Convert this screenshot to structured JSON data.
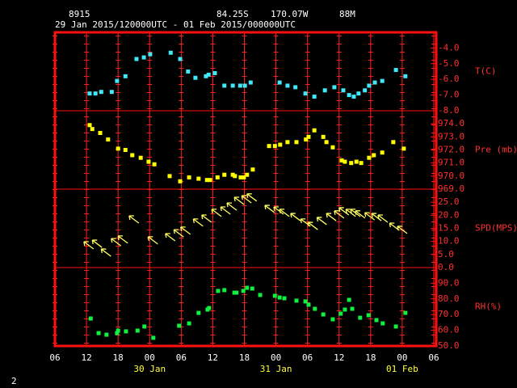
{
  "header": {
    "station": "8915",
    "lat": "84.25S",
    "lon": "170.07W",
    "elev": "88M",
    "period": "29 Jan 2015/120000UTC - 01 Feb 2015/000000UTC",
    "page": "2"
  },
  "x_axis": {
    "xlim": [
      0,
      72
    ],
    "xticks": [
      {
        "value": 0,
        "label": "06"
      },
      {
        "value": 6,
        "label": "12"
      },
      {
        "value": 12,
        "label": "18"
      },
      {
        "value": 18,
        "label": "00"
      },
      {
        "value": 24,
        "label": "06"
      },
      {
        "value": 30,
        "label": "12"
      },
      {
        "value": 36,
        "label": "18"
      },
      {
        "value": 42,
        "label": "00"
      },
      {
        "value": 48,
        "label": "06"
      },
      {
        "value": 54,
        "label": "12"
      },
      {
        "value": 60,
        "label": "18"
      },
      {
        "value": 66,
        "label": "00"
      },
      {
        "value": 72,
        "label": "06"
      }
    ],
    "date_labels": [
      {
        "value": 18,
        "label": "30 Jan"
      },
      {
        "value": 42,
        "label": "31 Jan"
      },
      {
        "value": 66,
        "label": "01 Feb"
      }
    ]
  },
  "chart_data": [
    {
      "type": "scatter",
      "ylabel": "T(C)",
      "color": "#40e8f8",
      "ylim": [
        -8,
        -3
      ],
      "yticks": [
        {
          "value": -4,
          "label": "-4.0"
        },
        {
          "value": -5,
          "label": "-5.0"
        },
        {
          "value": -6,
          "label": "-6.0"
        },
        {
          "value": -7,
          "label": "-7.0"
        },
        {
          "value": -8,
          "label": "-8.0"
        }
      ],
      "x": [
        6.6,
        7.7,
        8.8,
        10.8,
        11.8,
        13.4,
        15.5,
        16.9,
        18.1,
        22.0,
        23.8,
        25.3,
        26.7,
        28.7,
        29.2,
        30.4,
        32.2,
        33.8,
        35.2,
        36.1,
        37.2,
        42.7,
        44.2,
        45.7,
        47.6,
        49.3,
        51.3,
        53.1,
        54.8,
        55.9,
        56.8,
        57.7,
        58.9,
        59.7,
        60.8,
        62.2,
        64.8,
        66.6
      ],
      "values": [
        -6.9,
        -6.9,
        -6.8,
        -6.8,
        -6.1,
        -5.8,
        -4.7,
        -4.6,
        -4.4,
        -4.3,
        -4.7,
        -5.5,
        -5.9,
        -5.8,
        -5.7,
        -5.6,
        -6.4,
        -6.4,
        -6.4,
        -6.4,
        -6.2,
        -6.2,
        -6.4,
        -6.5,
        -6.9,
        -7.1,
        -6.7,
        -6.5,
        -6.7,
        -7.0,
        -7.1,
        -6.9,
        -6.7,
        -6.4,
        -6.2,
        -6.1,
        -5.4,
        -5.8
      ]
    },
    {
      "type": "scatter",
      "ylabel": "Pre (mb)",
      "color": "#ffff00",
      "ylim": [
        969,
        975
      ],
      "yticks": [
        {
          "value": 974,
          "label": "974.0"
        },
        {
          "value": 973,
          "label": "973.0"
        },
        {
          "value": 972,
          "label": "972.0"
        },
        {
          "value": 971,
          "label": "971.0"
        },
        {
          "value": 970,
          "label": "970.0"
        },
        {
          "value": 969,
          "label": "969.0"
        }
      ],
      "x": [
        6.6,
        7.1,
        8.6,
        10.1,
        12.0,
        13.4,
        14.7,
        16.3,
        17.8,
        18.9,
        21.8,
        23.8,
        25.5,
        27.3,
        28.9,
        29.5,
        30.9,
        32.2,
        33.8,
        34.2,
        35.3,
        35.9,
        36.5,
        37.6,
        40.7,
        41.8,
        42.8,
        44.2,
        45.9,
        47.7,
        48.2,
        49.3,
        51.0,
        51.6,
        52.8,
        54.5,
        55.1,
        56.3,
        57.3,
        58.2,
        59.7,
        60.6,
        62.2,
        64.3,
        66.3
      ],
      "values": [
        973.9,
        973.6,
        973.3,
        972.8,
        972.1,
        972.0,
        971.6,
        971.4,
        971.1,
        970.9,
        970.0,
        969.6,
        969.9,
        969.8,
        969.7,
        969.7,
        969.9,
        970.1,
        970.1,
        970.0,
        969.9,
        969.9,
        970.1,
        970.5,
        972.3,
        972.3,
        972.4,
        972.6,
        972.6,
        972.8,
        973.0,
        973.5,
        973.0,
        972.6,
        972.2,
        971.2,
        971.1,
        971.0,
        971.1,
        971.0,
        971.4,
        971.6,
        971.8,
        972.6,
        972.1
      ]
    },
    {
      "type": "arrow",
      "ylabel": "SPD(MPS)",
      "color": "#ffff60",
      "ylim": [
        0,
        30
      ],
      "yticks": [
        {
          "value": 25,
          "label": "25.0"
        },
        {
          "value": 20,
          "label": "20.0"
        },
        {
          "value": 15,
          "label": "15.0"
        },
        {
          "value": 10,
          "label": "10.0"
        },
        {
          "value": 5,
          "label": "5.0"
        },
        {
          "value": 0,
          "label": "0.0"
        }
      ],
      "x": [
        5.5,
        7.1,
        8.8,
        10.7,
        12.0,
        14.1,
        17.7,
        21.0,
        22.6,
        23.9,
        26.3,
        27.9,
        29.8,
        31.5,
        32.7,
        34.1,
        35.5,
        36.5,
        39.9,
        41.6,
        42.7,
        44.8,
        46.7,
        48.1,
        49.8,
        51.6,
        53.1,
        54.0,
        55.3,
        56.2,
        57.1,
        58.9,
        60.2,
        61.4,
        63.6,
        65.1
      ],
      "values": [
        9.9,
        10.5,
        7.1,
        11.1,
        12.1,
        19.8,
        11.8,
        13.0,
        14.5,
        15.5,
        18.6,
        20.1,
        22.3,
        23.2,
        24.7,
        26.9,
        27.5,
        28.2,
        23.8,
        23.2,
        22.3,
        20.7,
        18.6,
        17.3,
        19.2,
        20.7,
        21.7,
        22.9,
        22.3,
        22.3,
        21.7,
        21.0,
        20.7,
        20.1,
        17.0,
        15.8
      ]
    },
    {
      "type": "scatter",
      "ylabel": "RH(%)",
      "color": "#10f040",
      "ylim": [
        50,
        100
      ],
      "yticks": [
        {
          "value": 90,
          "label": "90.0"
        },
        {
          "value": 80,
          "label": "80.0"
        },
        {
          "value": 70,
          "label": "70.0"
        },
        {
          "value": 60,
          "label": "60.0"
        },
        {
          "value": 50,
          "label": "50.0"
        }
      ],
      "x": [
        6.8,
        8.3,
        9.8,
        11.8,
        12.0,
        13.5,
        15.7,
        17.0,
        18.7,
        23.6,
        25.5,
        27.3,
        29.0,
        29.3,
        31.0,
        32.2,
        34.1,
        34.5,
        35.8,
        36.5,
        37.5,
        39.0,
        41.8,
        42.7,
        43.6,
        45.9,
        47.6,
        48.2,
        49.4,
        51.0,
        52.8,
        54.3,
        55.1,
        55.9,
        56.5,
        58.0,
        59.6,
        61.1,
        62.3,
        64.8,
        66.6
      ],
      "values": [
        67.5,
        58.2,
        57.2,
        58.2,
        59.8,
        59.3,
        59.8,
        62.4,
        55.2,
        62.9,
        64.4,
        71.1,
        73.2,
        74.2,
        85.1,
        85.6,
        84.0,
        84.0,
        85.1,
        87.1,
        86.6,
        82.5,
        82.0,
        80.9,
        80.4,
        78.9,
        78.4,
        76.3,
        73.7,
        70.1,
        67.0,
        70.6,
        73.2,
        79.4,
        73.7,
        68.0,
        69.6,
        66.5,
        64.4,
        62.4,
        71.1
      ]
    }
  ]
}
